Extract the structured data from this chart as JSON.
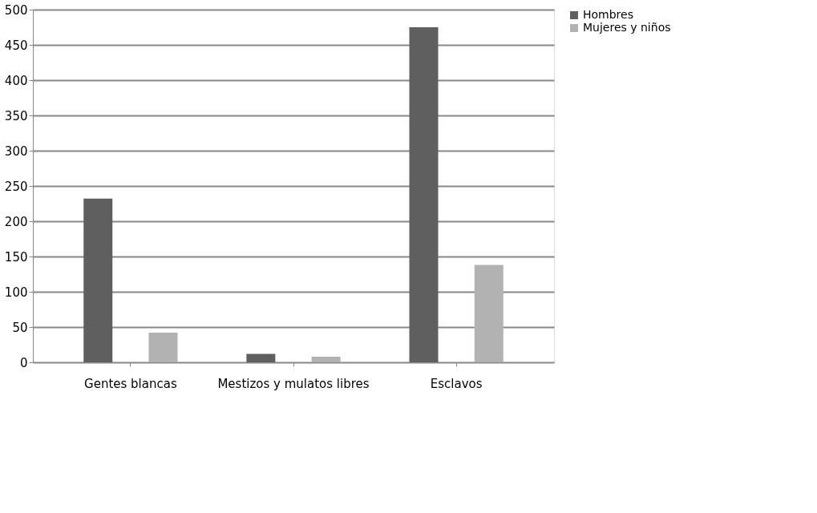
{
  "chart_data": {
    "type": "bar",
    "categories": [
      "Gentes blancas",
      "Mestizos y mulatos libres",
      "Esclavos"
    ],
    "series": [
      {
        "name": "Hombres",
        "color": "#5f5f5f",
        "values": [
          232,
          12,
          475
        ]
      },
      {
        "name": "Mujeres y niños",
        "color": "#b2b2b2",
        "values": [
          42,
          8,
          138
        ]
      }
    ],
    "ylim": [
      0,
      500
    ],
    "yticks": [
      0,
      50,
      100,
      150,
      200,
      250,
      300,
      350,
      400,
      450,
      500
    ],
    "grid": "y",
    "legend": "right"
  }
}
